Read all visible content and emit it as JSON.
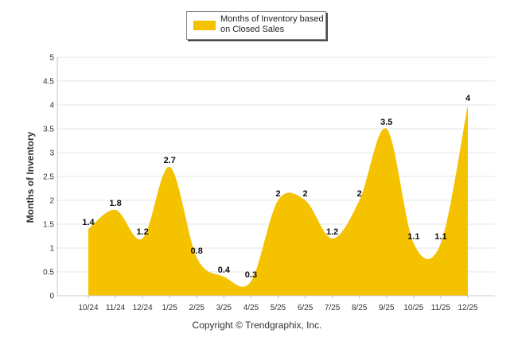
{
  "chart_data": {
    "type": "area",
    "categories": [
      "10/24",
      "11/24",
      "12/24",
      "1/25",
      "2/25",
      "3/25",
      "4/25",
      "5/25",
      "6/25",
      "7/25",
      "8/25",
      "9/25",
      "10/25",
      "11/25",
      "12/25"
    ],
    "series": [
      {
        "name": "Months of Inventory based on Closed Sales",
        "values": [
          1.4,
          1.8,
          1.2,
          2.7,
          0.8,
          0.4,
          0.3,
          2,
          2,
          1.2,
          2,
          3.5,
          1.1,
          1.1,
          4
        ],
        "color": "#F5C200"
      }
    ],
    "data_labels": [
      "1.4",
      "1.8",
      "1.2",
      "2.7",
      "0.8",
      "0.4",
      "0.3",
      "2",
      "2",
      "1.2",
      "2",
      "3.5",
      "1.1",
      "1.1",
      "4"
    ],
    "title": "",
    "xlabel": "",
    "ylabel": "Months of Inventory",
    "ylim": [
      0,
      5
    ],
    "yticks": [
      "0",
      "0.5",
      "1",
      "1.5",
      "2",
      "2.5",
      "3",
      "3.5",
      "4",
      "4.5",
      "5"
    ],
    "grid": true,
    "legend": "top-center"
  },
  "footer": {
    "copyright": "Copyright © Trendgraphix, Inc."
  }
}
